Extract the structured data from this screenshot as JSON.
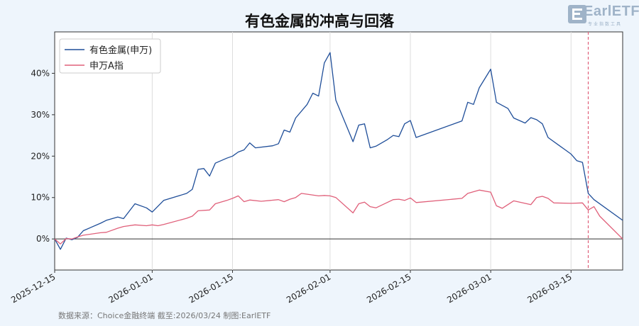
{
  "title": "有色金属的冲高与回落",
  "logo": {
    "text": "EarlETF",
    "subtext": "专业指数工具"
  },
  "source": "数据来源：Choice金融终端 截至:2026/03/24 制图:EarlETF",
  "chart_data": {
    "type": "line",
    "title": "有色金属的冲高与回落",
    "xlabel": "",
    "ylabel": "",
    "x_range": [
      "2025-12-15",
      "2026-03-24"
    ],
    "ylim": [
      -7.5,
      50
    ],
    "y_ticks": [
      0,
      10,
      20,
      30,
      40
    ],
    "y_tick_labels": [
      "0%",
      "10%",
      "20%",
      "30%",
      "40%"
    ],
    "x_ticks": [
      "2025-12-15",
      "2026-01-01",
      "2026-01-15",
      "2026-02-01",
      "2026-02-15",
      "2026-03-01",
      "2026-03-15"
    ],
    "grid": "vertical",
    "legend": "top-left",
    "zero_line": true,
    "marker_line": {
      "date": "2026-03-18",
      "color": "#e0607a",
      "style": "dashed"
    },
    "series": [
      {
        "name": "有色金属(申万)",
        "color": "#1f4e99",
        "points": [
          [
            "2025-12-15",
            0.0
          ],
          [
            "2025-12-16",
            -2.5
          ],
          [
            "2025-12-17",
            0.2
          ],
          [
            "2025-12-18",
            -0.2
          ],
          [
            "2025-12-19",
            0.4
          ],
          [
            "2025-12-20",
            2.0
          ],
          [
            "2025-12-23",
            3.8
          ],
          [
            "2025-12-24",
            4.5
          ],
          [
            "2025-12-26",
            5.3
          ],
          [
            "2025-12-27",
            4.9
          ],
          [
            "2025-12-29",
            8.5
          ],
          [
            "2025-12-31",
            7.5
          ],
          [
            "2026-01-01",
            6.5
          ],
          [
            "2026-01-03",
            9.3
          ],
          [
            "2026-01-07",
            11.0
          ],
          [
            "2026-01-08",
            12.0
          ],
          [
            "2026-01-09",
            16.8
          ],
          [
            "2026-01-10",
            17.0
          ],
          [
            "2026-01-11",
            15.2
          ],
          [
            "2026-01-12",
            18.3
          ],
          [
            "2026-01-14",
            19.5
          ],
          [
            "2026-01-15",
            20.0
          ],
          [
            "2026-01-16",
            21.0
          ],
          [
            "2026-01-17",
            21.5
          ],
          [
            "2026-01-18",
            23.2
          ],
          [
            "2026-01-19",
            22.0
          ],
          [
            "2026-01-22",
            22.5
          ],
          [
            "2026-01-23",
            23.0
          ],
          [
            "2026-01-24",
            26.3
          ],
          [
            "2026-01-25",
            25.8
          ],
          [
            "2026-01-26",
            29.2
          ],
          [
            "2026-01-28",
            32.5
          ],
          [
            "2026-01-29",
            35.2
          ],
          [
            "2026-01-30",
            34.5
          ],
          [
            "2026-01-31",
            42.5
          ],
          [
            "2026-02-01",
            45.0
          ],
          [
            "2026-02-02",
            33.5
          ],
          [
            "2026-02-05",
            23.5
          ],
          [
            "2026-02-06",
            27.5
          ],
          [
            "2026-02-07",
            27.8
          ],
          [
            "2026-02-08",
            22.0
          ],
          [
            "2026-02-09",
            22.4
          ],
          [
            "2026-02-11",
            24.0
          ],
          [
            "2026-02-12",
            25.0
          ],
          [
            "2026-02-13",
            24.7
          ],
          [
            "2026-02-14",
            27.8
          ],
          [
            "2026-02-15",
            28.6
          ],
          [
            "2026-02-16",
            24.5
          ],
          [
            "2026-02-24",
            28.5
          ],
          [
            "2026-02-25",
            33.0
          ],
          [
            "2026-02-26",
            32.5
          ],
          [
            "2026-02-27",
            36.5
          ],
          [
            "2026-03-01",
            41.0
          ],
          [
            "2026-03-02",
            33.0
          ],
          [
            "2026-03-04",
            31.5
          ],
          [
            "2026-03-05",
            29.2
          ],
          [
            "2026-03-07",
            28.0
          ],
          [
            "2026-03-08",
            29.3
          ],
          [
            "2026-03-09",
            28.8
          ],
          [
            "2026-03-10",
            27.8
          ],
          [
            "2026-03-11",
            24.5
          ],
          [
            "2026-03-13",
            22.5
          ],
          [
            "2026-03-14",
            21.5
          ],
          [
            "2026-03-15",
            20.5
          ],
          [
            "2026-03-16",
            18.9
          ],
          [
            "2026-03-17",
            18.5
          ],
          [
            "2026-03-18",
            11.0
          ],
          [
            "2026-03-19",
            9.5
          ],
          [
            "2026-03-24",
            4.5
          ]
        ]
      },
      {
        "name": "申万A指",
        "color": "#e0607a",
        "points": [
          [
            "2025-12-15",
            0.0
          ],
          [
            "2025-12-16",
            -1.2
          ],
          [
            "2025-12-17",
            0.1
          ],
          [
            "2025-12-18",
            0.0
          ],
          [
            "2025-12-19",
            0.5
          ],
          [
            "2025-12-20",
            0.9
          ],
          [
            "2025-12-23",
            1.5
          ],
          [
            "2025-12-24",
            1.6
          ],
          [
            "2025-12-26",
            2.6
          ],
          [
            "2025-12-27",
            3.0
          ],
          [
            "2025-12-29",
            3.4
          ],
          [
            "2025-12-31",
            3.2
          ],
          [
            "2026-01-01",
            3.4
          ],
          [
            "2026-01-02",
            3.2
          ],
          [
            "2026-01-03",
            3.5
          ],
          [
            "2026-01-07",
            5.0
          ],
          [
            "2026-01-08",
            5.5
          ],
          [
            "2026-01-09",
            6.8
          ],
          [
            "2026-01-11",
            7.0
          ],
          [
            "2026-01-12",
            8.5
          ],
          [
            "2026-01-14",
            9.3
          ],
          [
            "2026-01-15",
            9.8
          ],
          [
            "2026-01-16",
            10.4
          ],
          [
            "2026-01-17",
            9.0
          ],
          [
            "2026-01-18",
            9.4
          ],
          [
            "2026-01-20",
            9.1
          ],
          [
            "2026-01-23",
            9.5
          ],
          [
            "2026-01-24",
            9.0
          ],
          [
            "2026-01-25",
            9.6
          ],
          [
            "2026-01-26",
            10.0
          ],
          [
            "2026-01-27",
            11.0
          ],
          [
            "2026-01-30",
            10.4
          ],
          [
            "2026-01-31",
            10.5
          ],
          [
            "2026-02-01",
            10.4
          ],
          [
            "2026-02-02",
            10.0
          ],
          [
            "2026-02-05",
            6.3
          ],
          [
            "2026-02-06",
            8.5
          ],
          [
            "2026-02-07",
            8.9
          ],
          [
            "2026-02-08",
            7.8
          ],
          [
            "2026-02-09",
            7.5
          ],
          [
            "2026-02-12",
            9.5
          ],
          [
            "2026-02-13",
            9.6
          ],
          [
            "2026-02-14",
            9.3
          ],
          [
            "2026-02-15",
            9.9
          ],
          [
            "2026-02-16",
            8.8
          ],
          [
            "2026-02-24",
            9.8
          ],
          [
            "2026-02-25",
            11.0
          ],
          [
            "2026-02-27",
            11.8
          ],
          [
            "2026-03-01",
            11.3
          ],
          [
            "2026-03-02",
            8.0
          ],
          [
            "2026-03-03",
            7.4
          ],
          [
            "2026-03-05",
            9.2
          ],
          [
            "2026-03-08",
            8.3
          ],
          [
            "2026-03-09",
            10.0
          ],
          [
            "2026-03-10",
            10.3
          ],
          [
            "2026-03-11",
            9.8
          ],
          [
            "2026-03-12",
            8.7
          ],
          [
            "2026-03-15",
            8.6
          ],
          [
            "2026-03-17",
            8.7
          ],
          [
            "2026-03-18",
            7.0
          ],
          [
            "2026-03-19",
            7.8
          ],
          [
            "2026-03-20",
            5.5
          ],
          [
            "2026-03-24",
            0.0
          ]
        ]
      }
    ]
  }
}
